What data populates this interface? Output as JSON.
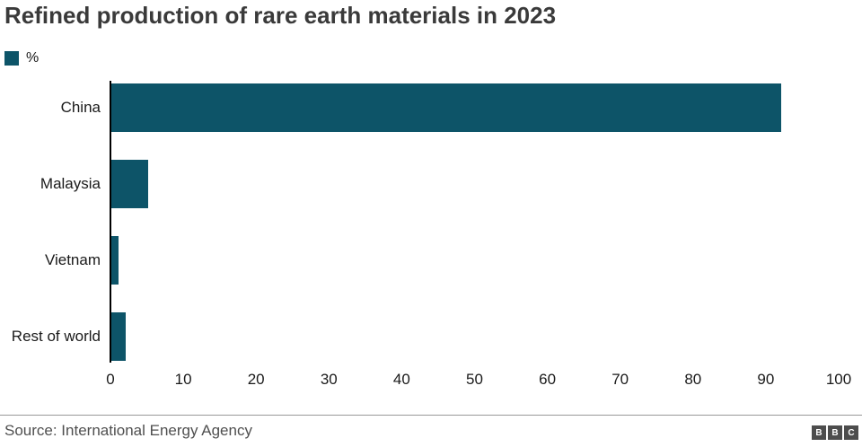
{
  "chart_data": {
    "type": "bar",
    "orientation": "horizontal",
    "title": "Refined production of rare earth materials in 2023",
    "legend": {
      "label": "%",
      "position": "top-left"
    },
    "categories": [
      "China",
      "Malaysia",
      "Vietnam",
      "Rest of world"
    ],
    "values": [
      92,
      5,
      1,
      2
    ],
    "unit": "%",
    "xlabel": "",
    "ylabel": "",
    "xlim": [
      0,
      100
    ],
    "xticks": [
      0,
      10,
      20,
      30,
      40,
      50,
      60,
      70,
      80,
      90,
      100
    ],
    "grid": false,
    "bar_color": "#0d5468"
  },
  "footer": {
    "source": "Source: International Energy Agency",
    "logo": [
      "B",
      "B",
      "C"
    ]
  },
  "colors": {
    "bar": "#0d5468",
    "title_text": "#3a3a3a",
    "label_text": "#1a1a1a",
    "tick_text": "#1a1a1a",
    "source_text": "#4f4f4f",
    "axis_line": "#000000",
    "divider_line": "#999999",
    "logo_bg": "#4d4d4d",
    "logo_text": "#ffffff"
  }
}
